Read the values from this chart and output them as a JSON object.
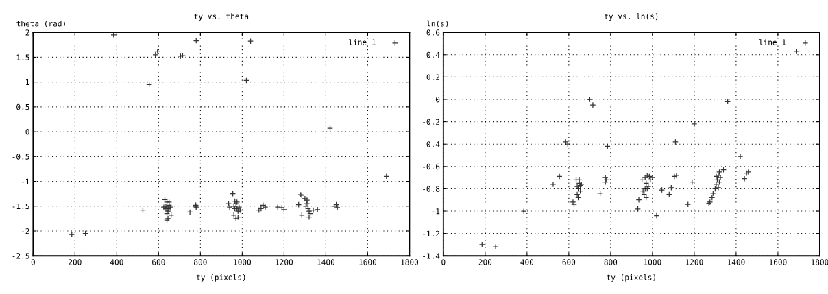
{
  "chart_data": [
    {
      "type": "scatter",
      "title": "ty vs. theta",
      "xlabel": "ty (pixels)",
      "ylabel": "theta (rad)",
      "xlim": [
        0,
        1800
      ],
      "xticks": [
        0,
        200,
        400,
        600,
        800,
        1000,
        1200,
        1400,
        1600,
        1800
      ],
      "ylim": [
        -2.5,
        2
      ],
      "yticks": [
        -2.5,
        -2,
        -1.5,
        -1,
        -0.5,
        0,
        0.5,
        1,
        1.5,
        2
      ],
      "grid": true,
      "legend": "top right",
      "marker": "cross",
      "series": [
        {
          "name": "line 1",
          "color": "#333333",
          "x": [
            185,
            250,
            385,
            555,
            585,
            595,
            705,
            715,
            780,
            1020,
            1040,
            1420,
            1690,
            525,
            630,
            640,
            635,
            645,
            625,
            650,
            655,
            645,
            640,
            660,
            645,
            640,
            635,
            650,
            750,
            775,
            780,
            778,
            935,
            940,
            955,
            965,
            970,
            960,
            975,
            980,
            985,
            990,
            960,
            970,
            980,
            975,
            965,
            1080,
            1090,
            1100,
            1110,
            1170,
            1190,
            1200,
            1270,
            1280,
            1285,
            1285,
            1300,
            1310,
            1305,
            1315,
            1320,
            1310,
            1325,
            1320,
            1340,
            1360,
            1440,
            1450,
            1455
          ],
          "values": [
            -2.07,
            -2.05,
            1.95,
            0.95,
            1.55,
            1.62,
            1.52,
            1.53,
            1.83,
            1.03,
            1.82,
            0.07,
            -0.9,
            -1.58,
            -1.37,
            -1.42,
            -1.5,
            -1.55,
            -1.52,
            -1.48,
            -1.52,
            -1.6,
            -1.65,
            -1.68,
            -1.75,
            -1.78,
            -1.55,
            -1.42,
            -1.62,
            -1.5,
            -1.52,
            -1.48,
            -1.45,
            -1.52,
            -1.25,
            -1.4,
            -1.45,
            -1.5,
            -1.55,
            -1.6,
            -1.52,
            -1.58,
            -1.68,
            -1.75,
            -1.72,
            -1.42,
            -1.55,
            -1.58,
            -1.55,
            -1.48,
            -1.52,
            -1.52,
            -1.53,
            -1.57,
            -1.47,
            -1.27,
            -1.28,
            -1.68,
            -1.35,
            -1.38,
            -1.5,
            -1.55,
            -1.6,
            -1.45,
            -1.65,
            -1.72,
            -1.58,
            -1.57,
            -1.5,
            -1.47,
            -1.53
          ]
        }
      ]
    },
    {
      "type": "scatter",
      "title": "ty vs. ln(s)",
      "xlabel": "ty (pixels)",
      "ylabel": "ln(s)",
      "xlim": [
        0,
        1800
      ],
      "xticks": [
        0,
        200,
        400,
        600,
        800,
        1000,
        1200,
        1400,
        1600,
        1800
      ],
      "ylim": [
        -1.4,
        0.6
      ],
      "yticks": [
        -1.4,
        -1.2,
        -1,
        -0.8,
        -0.6,
        -0.4,
        -0.2,
        0,
        0.2,
        0.4,
        0.6
      ],
      "grid": true,
      "legend": "top right",
      "marker": "cross",
      "series": [
        {
          "name": "line 1",
          "color": "#333333",
          "x": [
            185,
            250,
            385,
            525,
            555,
            585,
            595,
            700,
            715,
            750,
            775,
            780,
            775,
            785,
            620,
            625,
            635,
            640,
            645,
            645,
            650,
            655,
            650,
            640,
            660,
            655,
            930,
            935,
            950,
            955,
            960,
            965,
            970,
            975,
            980,
            985,
            970,
            990,
            1000,
            975,
            965,
            1020,
            1045,
            1080,
            1090,
            1105,
            1110,
            1115,
            1170,
            1190,
            1200,
            1270,
            1275,
            1285,
            1290,
            1300,
            1305,
            1310,
            1315,
            1320,
            1315,
            1325,
            1320,
            1340,
            1305,
            1360,
            1420,
            1440,
            1450,
            1460,
            1690
          ],
          "values": [
            -1.3,
            -1.32,
            -1.0,
            -0.76,
            -0.69,
            -0.38,
            -0.4,
            0.0,
            -0.05,
            -0.84,
            -0.7,
            -0.72,
            -0.74,
            -0.42,
            -0.92,
            -0.94,
            -0.72,
            -0.85,
            -0.88,
            -0.8,
            -0.75,
            -0.77,
            -0.72,
            -0.78,
            -0.76,
            -0.82,
            -0.98,
            -0.9,
            -0.72,
            -0.82,
            -0.85,
            -0.7,
            -0.75,
            -0.8,
            -0.78,
            -0.69,
            -0.88,
            -0.72,
            -0.7,
            -0.68,
            -0.8,
            -1.04,
            -0.81,
            -0.85,
            -0.79,
            -0.69,
            -0.38,
            -0.68,
            -0.94,
            -0.74,
            -0.22,
            -0.93,
            -0.92,
            -0.88,
            -0.84,
            -0.8,
            -0.76,
            -0.72,
            -0.68,
            -0.74,
            -0.79,
            -0.7,
            -0.65,
            -0.63,
            -0.69,
            -0.02,
            -0.51,
            -0.71,
            -0.66,
            -0.65,
            0.43
          ]
        }
      ]
    }
  ]
}
